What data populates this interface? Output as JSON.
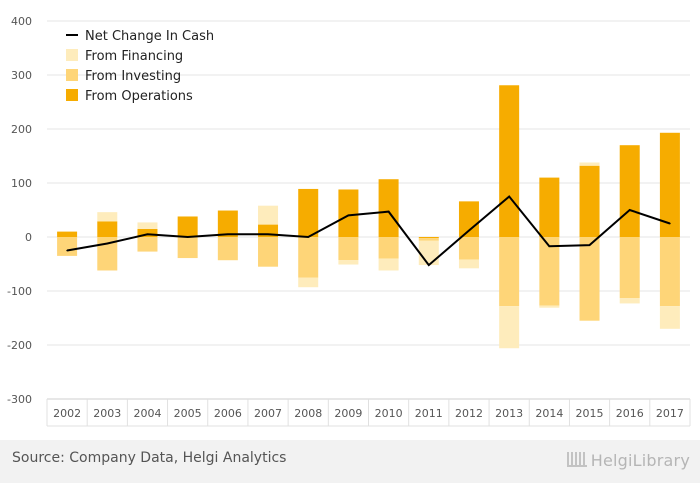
{
  "chart_data": {
    "type": "bar",
    "categories": [
      "2002",
      "2003",
      "2004",
      "2005",
      "2006",
      "2007",
      "2008",
      "2009",
      "2010",
      "2011",
      "2012",
      "2013",
      "2014",
      "2015",
      "2016",
      "2017"
    ],
    "series": [
      {
        "name": "From Operations",
        "values": [
          10,
          29,
          15,
          38,
          49,
          23,
          89,
          88,
          107,
          -2,
          66,
          281,
          110,
          132,
          170,
          193
        ]
      },
      {
        "name": "From Investing",
        "values": [
          -35,
          -62,
          -27,
          -39,
          -43,
          -55,
          -75,
          -43,
          -40,
          -5,
          -42,
          -128,
          -127,
          -155,
          -113,
          -128
        ]
      },
      {
        "name": "From Financing",
        "values": [
          0,
          17,
          12,
          0,
          0,
          35,
          -18,
          -8,
          -22,
          -45,
          -16,
          -78,
          -4,
          6,
          -10,
          -42
        ]
      },
      {
        "name": "Net Change In Cash",
        "values": [
          -25,
          -12,
          5,
          0,
          5,
          5,
          0,
          40,
          47,
          -52,
          12,
          75,
          -17,
          -15,
          50,
          25
        ]
      }
    ],
    "xlabel": "",
    "ylabel": "",
    "ylim": [
      -300,
      400
    ],
    "yticks": [
      -300,
      -200,
      -100,
      0,
      100,
      200,
      300,
      400
    ],
    "grid": true,
    "legend": "top-left",
    "colors": {
      "From Operations": "#f6ac00",
      "From Investing": "#fed578",
      "From Financing": "#feecbc",
      "Net Change In Cash": "#000000",
      "grid": "#e6e6e6"
    }
  },
  "footer": {
    "source": "Source: Company Data, Helgi Analytics",
    "brand": "HelgiLibrary"
  }
}
